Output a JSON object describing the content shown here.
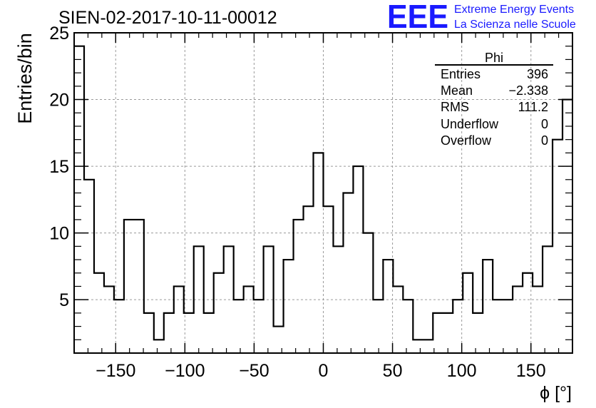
{
  "header": {
    "run_title": "SIEN-02-2017-10-11-00012",
    "logo_text": "EEE",
    "brand_line1": "Extreme Energy Events",
    "brand_line2": "La Scienza nelle Scuole",
    "brand_color": "#1a1aff"
  },
  "stats": {
    "name": "Phi",
    "rows": [
      {
        "label": "Entries",
        "value": "396"
      },
      {
        "label": "Mean",
        "value": "−2.338"
      },
      {
        "label": "RMS",
        "value": "111.2"
      },
      {
        "label": "Underflow",
        "value": "0"
      },
      {
        "label": "Overflow",
        "value": "0"
      }
    ]
  },
  "chart_data": {
    "type": "histogram",
    "title": "SIEN-02-2017-10-11-00012",
    "xlabel": "ϕ [°]",
    "ylabel": "Entries/bin",
    "xlim": [
      -180,
      180
    ],
    "ylim": [
      1,
      25
    ],
    "bin_width": 7.2,
    "xticks": [
      -150,
      -100,
      -50,
      0,
      50,
      100,
      150
    ],
    "xtick_labels": [
      "−150",
      "−100",
      "−50",
      "0",
      "50",
      "100",
      "150"
    ],
    "yticks": [
      5,
      10,
      15,
      20,
      25
    ],
    "grid": true,
    "line_color": "#000000",
    "values": [
      24,
      14,
      7,
      6,
      5,
      11,
      11,
      4,
      2,
      4,
      6,
      4,
      9,
      4,
      7,
      9,
      5,
      6,
      5,
      9,
      3,
      8,
      11,
      12,
      16,
      12,
      9,
      13,
      15,
      10,
      5,
      8,
      6,
      5,
      2,
      2,
      4,
      4,
      5,
      7,
      4,
      8,
      5,
      5,
      6,
      7,
      6,
      9,
      17,
      20
    ]
  }
}
